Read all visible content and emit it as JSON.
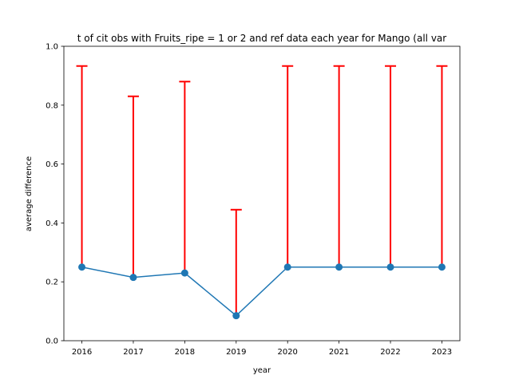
{
  "chart_data": {
    "type": "line",
    "title": "t of cit obs with Fruits_ripe = 1 or 2 and ref data each year for Mango (all var",
    "xlabel": "year",
    "ylabel": "average difference",
    "x": [
      2016,
      2017,
      2018,
      2019,
      2020,
      2021,
      2022,
      2023
    ],
    "series": [
      {
        "values": [
          0.25,
          0.215,
          0.23,
          0.085,
          0.25,
          0.25,
          0.25,
          0.25
        ],
        "error_low": [
          0.0,
          0.0,
          0.0,
          0.0,
          0.0,
          0.0,
          0.0,
          0.0
        ],
        "error_high": [
          0.683,
          0.615,
          0.65,
          0.36,
          0.683,
          0.683,
          0.683,
          0.683
        ],
        "color": "#1f77b4",
        "error_color": "#ff0000"
      }
    ],
    "xlim": [
      2015.65,
      2023.35
    ],
    "ylim": [
      0.0,
      1.0
    ],
    "x_ticks": [
      "2016",
      "2017",
      "2018",
      "2019",
      "2020",
      "2021",
      "2022",
      "2023"
    ],
    "y_ticks": [
      "0.0",
      "0.2",
      "0.4",
      "0.6",
      "0.8",
      "1.0"
    ],
    "grid": false,
    "legend": false
  }
}
